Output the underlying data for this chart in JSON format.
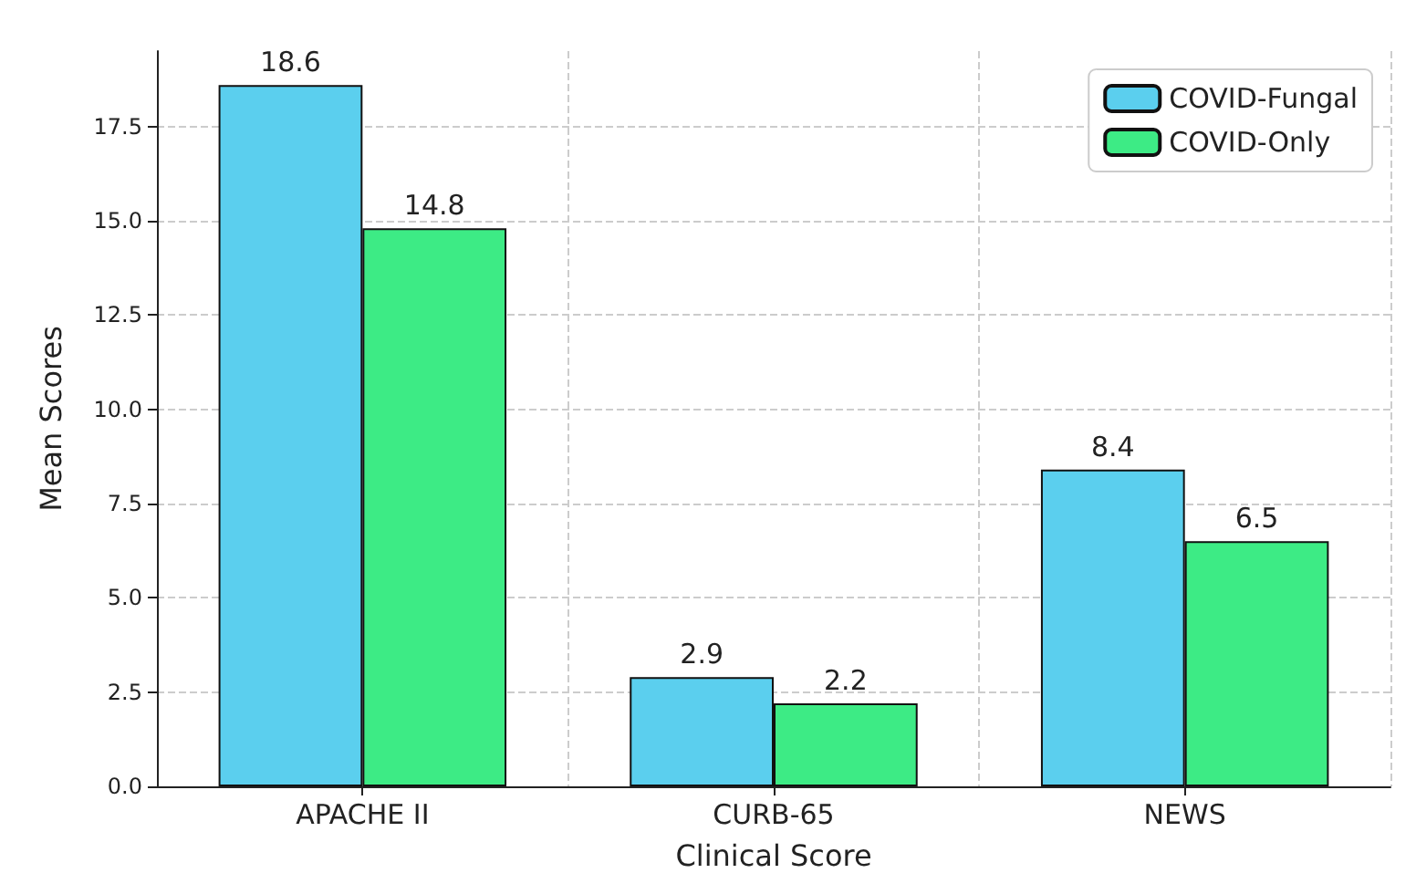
{
  "chart_data": {
    "type": "bar",
    "xlabel": "Clinical Score",
    "ylabel": "Mean Scores",
    "categories": [
      "APACHE II",
      "CURB-65",
      "NEWS"
    ],
    "series": [
      {
        "name": "COVID-Fungal",
        "color": "#5bcfee",
        "values": [
          18.6,
          2.9,
          8.4
        ]
      },
      {
        "name": "COVID-Only",
        "color": "#3deb85",
        "values": [
          14.8,
          2.2,
          6.5
        ]
      }
    ],
    "ylim": [
      0,
      19.5
    ],
    "yticks": [
      {
        "value": 0,
        "label": "0.0"
      },
      2.5,
      {
        "value": 5,
        "label": "5.0"
      },
      7.5,
      {
        "value": 10,
        "label": "10.0"
      },
      12.5,
      {
        "value": 15,
        "label": "15.0"
      },
      17.5
    ],
    "grid": true,
    "legend": "top right",
    "data_labels": true
  }
}
